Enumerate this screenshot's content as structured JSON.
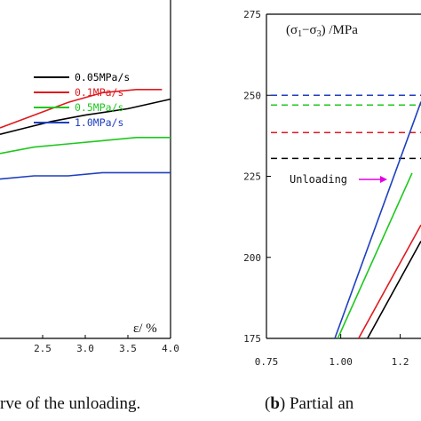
{
  "chart_data": [
    {
      "type": "line",
      "panel": "a",
      "caption_fragment": "rve of the unloading.",
      "xlabel": "ε/ %",
      "x_ticks": [
        "2.5",
        "3.0",
        "3.5",
        "4.0"
      ],
      "xlim": [
        2.0,
        4.0
      ],
      "legend_placement": "top-right",
      "series": [
        {
          "name": "0.05MPa/s",
          "color": "#000000",
          "x": [
            2.0,
            2.3,
            2.6,
            3.0,
            3.5,
            4.0
          ],
          "y": [
            0.58,
            0.6,
            0.62,
            0.64,
            0.66,
            0.69
          ]
        },
        {
          "name": "0.1MPa/s",
          "color": "#e0191e",
          "x": [
            2.0,
            2.4,
            2.8,
            3.2,
            3.6,
            3.9
          ],
          "y": [
            0.6,
            0.64,
            0.68,
            0.71,
            0.72,
            0.72
          ]
        },
        {
          "name": "0.5MPa/s",
          "color": "#1ec81e",
          "x": [
            2.0,
            2.4,
            2.8,
            3.2,
            3.6,
            4.0
          ],
          "y": [
            0.52,
            0.54,
            0.55,
            0.56,
            0.57,
            0.57
          ]
        },
        {
          "name": "1.0MPa/s",
          "color": "#1f3fbf",
          "x": [
            2.0,
            2.4,
            2.8,
            3.2,
            3.6,
            4.0
          ],
          "y": [
            0.44,
            0.45,
            0.45,
            0.46,
            0.46,
            0.46
          ]
        }
      ]
    },
    {
      "type": "line",
      "panel": "b",
      "caption_bold": "b",
      "caption_fragment": "Partial an",
      "ylabel": "(σ1−σ3) /MPa",
      "annotation": "Unloading",
      "xlim": [
        0.75,
        1.27
      ],
      "ylim": [
        175,
        275
      ],
      "x_ticks": [
        "0.75",
        "1.00",
        "1.2"
      ],
      "y_ticks": [
        "175",
        "200",
        "225",
        "250",
        "275"
      ],
      "unloading_levels": [
        {
          "value": 250,
          "color": "#1f3fbf"
        },
        {
          "value": 247,
          "color": "#1ec81e"
        },
        {
          "value": 238.5,
          "color": "#e0191e"
        },
        {
          "value": 230.5,
          "color": "#000000"
        }
      ],
      "series": [
        {
          "color": "#1f3fbf",
          "x": [
            0.98,
            1.27
          ],
          "y": [
            175,
            248
          ]
        },
        {
          "color": "#1ec81e",
          "x": [
            0.99,
            1.24
          ],
          "y": [
            175,
            226
          ]
        },
        {
          "color": "#e0191e",
          "x": [
            1.06,
            1.27
          ],
          "y": [
            175,
            210
          ]
        },
        {
          "color": "#000000",
          "x": [
            1.09,
            1.27
          ],
          "y": [
            175,
            205
          ]
        }
      ]
    }
  ]
}
